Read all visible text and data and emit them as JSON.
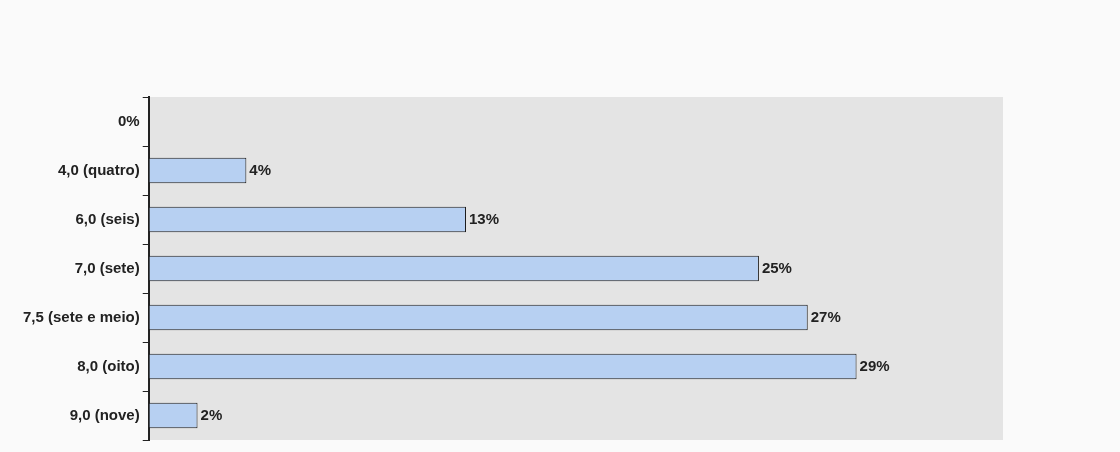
{
  "chart_data": {
    "type": "bar",
    "orientation": "horizontal",
    "categories": [
      "0%",
      "4,0 (quatro)",
      "6,0 (seis)",
      "7,0 (sete)",
      "7,5 (sete e meio)",
      "8,0 (oito)",
      "9,0 (nove)"
    ],
    "values": [
      null,
      4,
      13,
      25,
      27,
      29,
      2
    ],
    "value_labels": [
      null,
      "4%",
      "13%",
      "25%",
      "27%",
      "29%",
      "2%"
    ],
    "color": "#b7d0f2",
    "xlim": [
      0,
      35
    ],
    "tick_labels": "y",
    "grid": false,
    "legend": false
  }
}
